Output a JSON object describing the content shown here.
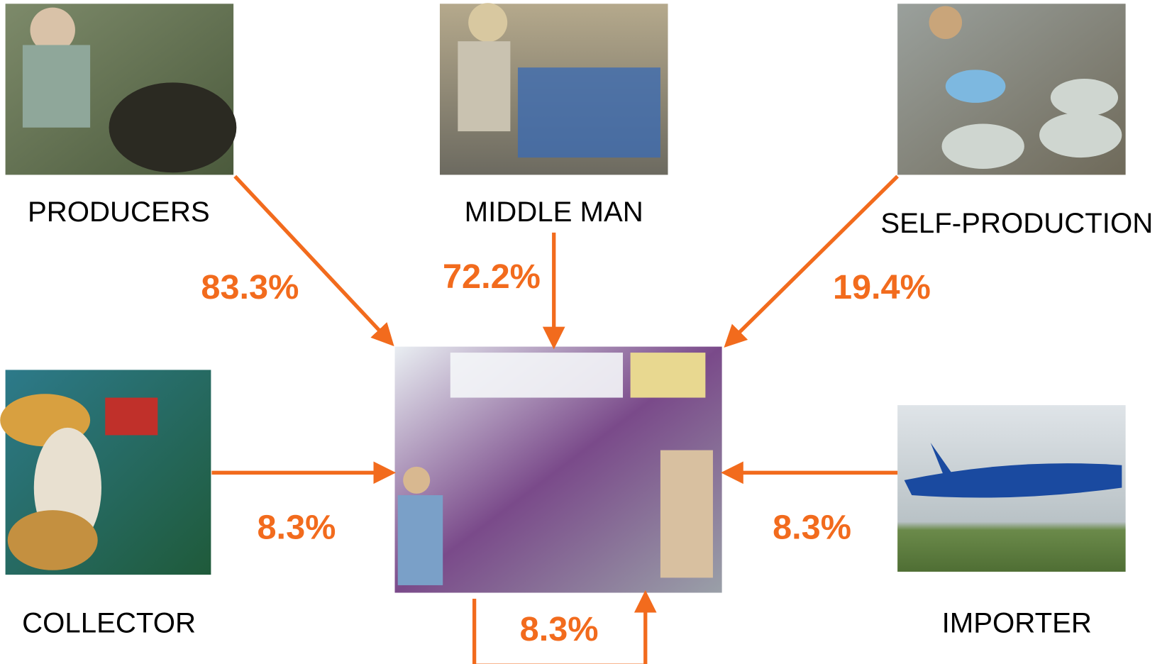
{
  "nodes": [
    {
      "label": "PRODUCERS"
    },
    {
      "label": "MIDDLE MAN"
    },
    {
      "label": "SELF-PRODUCTION"
    },
    {
      "label": "COLLECTOR"
    },
    {
      "label": "IMPORTER"
    }
  ],
  "edges": [
    {
      "label": "83.3%"
    },
    {
      "label": "72.2%"
    },
    {
      "label": "19.4%"
    },
    {
      "label": "8.3%"
    },
    {
      "label": "8.3%"
    },
    {
      "label": "8.3%"
    }
  ]
}
